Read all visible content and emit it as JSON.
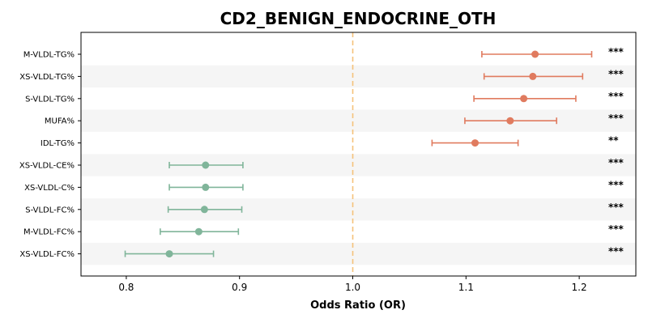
{
  "chart_data": {
    "type": "forest",
    "title": "CD2_BENIGN_ENDOCRINE_OTH",
    "xlabel": "Odds Ratio (OR)",
    "ylabel": "",
    "xlim": [
      0.76,
      1.25
    ],
    "xticks": [
      0.8,
      0.9,
      1.0,
      1.1,
      1.2
    ],
    "xtick_labels": [
      "0.8",
      "0.9",
      "1.0",
      "1.1",
      "1.2"
    ],
    "reference_line": 1.0,
    "grid": false,
    "colors": {
      "positive": "#e07b5f",
      "negative": "#80b59a",
      "reference": "#f5c27a",
      "band": "#f5f5f5"
    },
    "rows": [
      {
        "label": "M-VLDL-TG%",
        "or": 1.161,
        "lo": 1.114,
        "hi": 1.211,
        "sig": "***",
        "direction": "positive"
      },
      {
        "label": "XS-VLDL-TG%",
        "or": 1.159,
        "lo": 1.116,
        "hi": 1.203,
        "sig": "***",
        "direction": "positive"
      },
      {
        "label": "S-VLDL-TG%",
        "or": 1.151,
        "lo": 1.107,
        "hi": 1.197,
        "sig": "***",
        "direction": "positive"
      },
      {
        "label": "MUFA%",
        "or": 1.139,
        "lo": 1.099,
        "hi": 1.18,
        "sig": "***",
        "direction": "positive"
      },
      {
        "label": "IDL-TG%",
        "or": 1.108,
        "lo": 1.07,
        "hi": 1.146,
        "sig": "**",
        "direction": "positive"
      },
      {
        "label": "XS-VLDL-CE%",
        "or": 0.87,
        "lo": 0.838,
        "hi": 0.903,
        "sig": "***",
        "direction": "negative"
      },
      {
        "label": "XS-VLDL-C%",
        "or": 0.87,
        "lo": 0.838,
        "hi": 0.903,
        "sig": "***",
        "direction": "negative"
      },
      {
        "label": "S-VLDL-FC%",
        "or": 0.869,
        "lo": 0.837,
        "hi": 0.902,
        "sig": "***",
        "direction": "negative"
      },
      {
        "label": "M-VLDL-FC%",
        "or": 0.864,
        "lo": 0.83,
        "hi": 0.899,
        "sig": "***",
        "direction": "negative"
      },
      {
        "label": "XS-VLDL-FC%",
        "or": 0.838,
        "lo": 0.799,
        "hi": 0.877,
        "sig": "***",
        "direction": "negative"
      }
    ]
  }
}
